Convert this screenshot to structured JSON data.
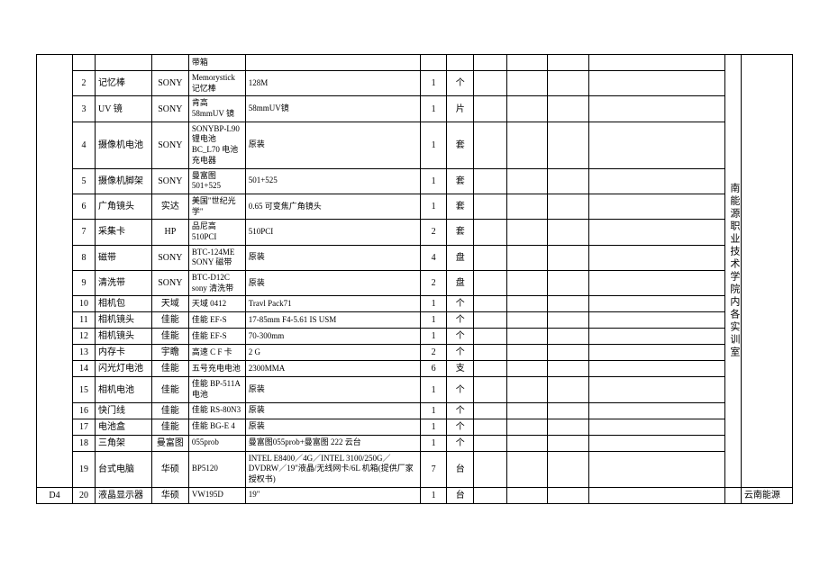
{
  "sideText": "南能源职业技术学院内各实训室",
  "lastCellText": "云南能源",
  "groupLabel": "D4",
  "rows": [
    {
      "n": "",
      "name": "",
      "brand": "",
      "model": "带箱",
      "spec": "",
      "qty": "",
      "unit": ""
    },
    {
      "n": "2",
      "name": "记忆棒",
      "brand": "SONY",
      "model": "Memorystick记忆棒",
      "spec": "128M",
      "qty": "1",
      "unit": "个"
    },
    {
      "n": "3",
      "name": "UV 镜",
      "brand": "SONY",
      "model": "肯高 58mmUV 镜",
      "spec": "58mmUV镜",
      "qty": "1",
      "unit": "片"
    },
    {
      "n": "4",
      "name": "摄像机电池",
      "brand": "SONY",
      "model": "SONYBP-L90 锂电池 BC_L70 电池充电器",
      "spec": "原装",
      "qty": "1",
      "unit": "套"
    },
    {
      "n": "5",
      "name": "摄像机脚架",
      "brand": "SONY",
      "model": "曼富图 501+525",
      "spec": "501+525",
      "qty": "1",
      "unit": "套"
    },
    {
      "n": "6",
      "name": "广角镜头",
      "brand": "实达",
      "model": "美国\"世纪光学\"",
      "spec": "0.65 可变焦广角镜头",
      "qty": "1",
      "unit": "套"
    },
    {
      "n": "7",
      "name": "采集卡",
      "brand": "HP",
      "model": "品尼高 510PCI",
      "spec": "510PCI",
      "qty": "2",
      "unit": "套"
    },
    {
      "n": "8",
      "name": "磁带",
      "brand": "SONY",
      "model": "BTC-124ME SONY 磁带",
      "spec": "原装",
      "qty": "4",
      "unit": "盘"
    },
    {
      "n": "9",
      "name": "清洗带",
      "brand": "SONY",
      "model": "BTC-D12C sony 清洗带",
      "spec": "原装",
      "qty": "2",
      "unit": "盘"
    },
    {
      "n": "10",
      "name": "相机包",
      "brand": "天域",
      "model": "天域 0412",
      "spec": "Travl Pack71",
      "qty": "1",
      "unit": "个"
    },
    {
      "n": "11",
      "name": "相机镜头",
      "brand": "佳能",
      "model": "佳能 EF-S",
      "spec": "17-85mm F4-5.61 IS USM",
      "qty": "1",
      "unit": "个"
    },
    {
      "n": "12",
      "name": "相机镜头",
      "brand": "佳能",
      "model": "佳能 EF-S",
      "spec": "70-300mm",
      "qty": "1",
      "unit": "个"
    },
    {
      "n": "13",
      "name": "内存卡",
      "brand": "宇瞻",
      "model": "高速 C F 卡",
      "spec": "2 G",
      "qty": "2",
      "unit": "个"
    },
    {
      "n": "14",
      "name": "闪光灯电池",
      "brand": "佳能",
      "model": "五号充电电池",
      "spec": "2300MMA",
      "qty": "6",
      "unit": "支"
    },
    {
      "n": "15",
      "name": "相机电池",
      "brand": "佳能",
      "model": "佳能 BP-511A 电池",
      "spec": "原装",
      "qty": "1",
      "unit": "个"
    },
    {
      "n": "16",
      "name": "快门线",
      "brand": "佳能",
      "model": "佳能 RS-80N3",
      "spec": "原装",
      "qty": "1",
      "unit": "个"
    },
    {
      "n": "17",
      "name": "电池盒",
      "brand": "佳能",
      "model": "佳能 BG-E 4",
      "spec": "原装",
      "qty": "1",
      "unit": "个"
    },
    {
      "n": "18",
      "name": "三角架",
      "brand": "曼富图",
      "model": "055prob",
      "spec": "曼富图055prob+曼富图 222 云台",
      "qty": "1",
      "unit": "个"
    },
    {
      "n": "19",
      "name": "台式电脑",
      "brand": "华硕",
      "model": "BP5120",
      "spec": "INTEL E8400／4G／INTEL 3100/250G／DVDRW／19\"液晶/无线网卡/6L 机箱(提供厂家授权书)",
      "qty": "7",
      "unit": "台"
    },
    {
      "n": "20",
      "name": "液晶显示器",
      "brand": "华硕",
      "model": "VW195D",
      "spec": "19\"",
      "qty": "1",
      "unit": "台"
    }
  ]
}
